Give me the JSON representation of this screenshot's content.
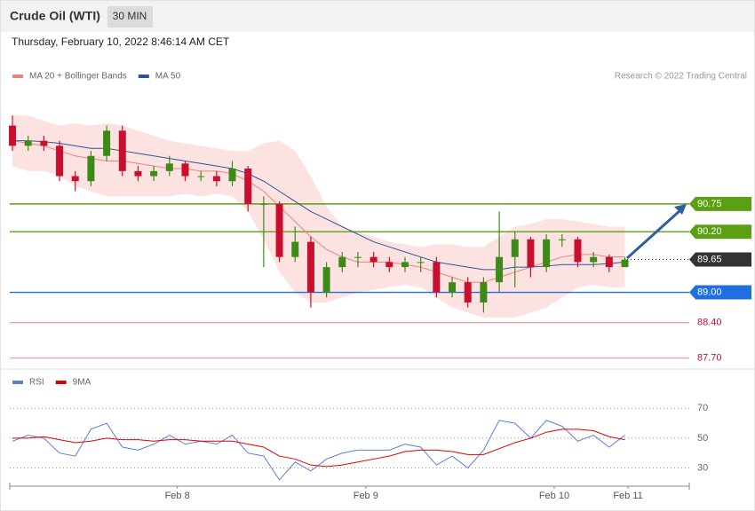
{
  "header": {
    "title": "Crude Oil (WTI)",
    "interval": "30 MIN",
    "datetime": "Thursday, February 10, 2022 8:46:14 AM CET",
    "credit": "Research © 2022 Trading Central"
  },
  "chart_data": [
    {
      "type": "candlestick",
      "x": [
        0,
        1,
        2,
        3,
        4,
        5,
        6,
        7,
        8,
        9,
        10,
        11,
        12,
        13,
        14,
        15,
        16,
        17,
        18,
        19,
        20,
        21,
        22,
        23,
        24,
        25,
        26,
        27,
        28,
        29,
        30,
        31,
        32,
        33,
        34,
        35,
        36,
        37,
        38,
        39
      ],
      "open": [
        92.3,
        91.9,
        92.0,
        91.9,
        91.3,
        91.2,
        91.7,
        92.2,
        91.4,
        91.3,
        91.4,
        91.55,
        91.3,
        91.3,
        91.2,
        91.45,
        90.75,
        90.75,
        89.7,
        90.0,
        89.0,
        89.5,
        89.7,
        89.7,
        89.6,
        89.5,
        89.6,
        89.6,
        89.0,
        89.2,
        88.8,
        89.2,
        89.7,
        90.05,
        89.5,
        90.05,
        90.05,
        89.6,
        89.7,
        89.5
      ],
      "high": [
        92.5,
        92.1,
        92.1,
        92.0,
        91.4,
        91.8,
        92.3,
        92.3,
        91.5,
        91.5,
        91.7,
        91.6,
        91.4,
        91.4,
        91.6,
        91.5,
        90.9,
        90.8,
        90.3,
        90.1,
        89.6,
        89.8,
        89.8,
        89.8,
        89.7,
        89.7,
        89.7,
        89.7,
        89.3,
        89.3,
        89.3,
        90.6,
        90.2,
        90.1,
        90.15,
        90.15,
        90.1,
        89.8,
        89.75,
        89.7
      ],
      "low": [
        91.8,
        91.8,
        91.8,
        91.2,
        91.0,
        91.1,
        91.6,
        91.3,
        91.2,
        91.2,
        91.3,
        91.2,
        91.2,
        91.1,
        91.1,
        90.6,
        89.5,
        89.6,
        89.6,
        88.7,
        88.9,
        89.4,
        89.5,
        89.5,
        89.4,
        89.4,
        89.4,
        88.9,
        88.9,
        88.7,
        88.6,
        89.0,
        89.1,
        89.3,
        89.4,
        89.9,
        89.5,
        89.5,
        89.4,
        89.5
      ],
      "close": [
        91.9,
        92.0,
        91.9,
        91.3,
        91.2,
        91.7,
        92.2,
        91.4,
        91.3,
        91.4,
        91.55,
        91.3,
        91.3,
        91.2,
        91.45,
        90.75,
        90.75,
        89.7,
        90.0,
        89.0,
        89.5,
        89.7,
        89.7,
        89.6,
        89.5,
        89.6,
        89.6,
        89.0,
        89.2,
        88.8,
        89.2,
        89.7,
        90.05,
        89.5,
        90.05,
        90.05,
        89.6,
        89.7,
        89.5,
        89.65
      ],
      "up_color": "#3d8b17",
      "down_color": "#c8102e",
      "series": [
        {
          "name": "MA 20 + Bollinger Bands",
          "color": "#f08080",
          "values": [
            92.0,
            91.95,
            91.9,
            91.8,
            91.7,
            91.65,
            91.6,
            91.6,
            91.55,
            91.5,
            91.45,
            91.45,
            91.4,
            91.4,
            91.35,
            91.2,
            91.0,
            90.7,
            90.4,
            90.1,
            89.85,
            89.7,
            89.6,
            89.6,
            89.6,
            89.55,
            89.5,
            89.4,
            89.3,
            89.2,
            89.2,
            89.3,
            89.4,
            89.5,
            89.6,
            89.7,
            89.75,
            89.75,
            89.7,
            89.7
          ],
          "upper": [
            92.5,
            92.5,
            92.4,
            92.3,
            92.35,
            92.3,
            92.35,
            92.3,
            92.2,
            92.1,
            92.0,
            91.95,
            91.9,
            91.85,
            91.8,
            91.8,
            91.95,
            92.0,
            91.8,
            91.3,
            90.7,
            90.3,
            90.2,
            90.1,
            90.0,
            89.95,
            89.9,
            89.95,
            89.95,
            89.9,
            89.9,
            90.1,
            90.3,
            90.35,
            90.45,
            90.45,
            90.4,
            90.35,
            90.3,
            90.3
          ],
          "lower": [
            91.5,
            91.4,
            91.4,
            91.3,
            91.1,
            91.0,
            90.9,
            90.9,
            90.9,
            90.9,
            90.9,
            90.95,
            90.9,
            90.95,
            90.9,
            90.6,
            90.05,
            89.4,
            89.0,
            88.8,
            88.8,
            88.9,
            89.0,
            89.05,
            89.1,
            89.15,
            89.1,
            88.9,
            88.7,
            88.6,
            88.5,
            88.5,
            88.5,
            88.6,
            88.7,
            88.9,
            89.1,
            89.15,
            89.1,
            89.1
          ],
          "band_color": "#fde2e2"
        },
        {
          "name": "MA 50",
          "color": "#2f5597",
          "values": [
            92.0,
            92.0,
            91.98,
            91.95,
            91.9,
            91.85,
            91.85,
            91.8,
            91.75,
            91.7,
            91.65,
            91.6,
            91.55,
            91.5,
            91.45,
            91.35,
            91.2,
            91.0,
            90.8,
            90.6,
            90.45,
            90.3,
            90.15,
            90.0,
            89.9,
            89.8,
            89.7,
            89.6,
            89.55,
            89.5,
            89.45,
            89.45,
            89.5,
            89.5,
            89.52,
            89.55,
            89.55,
            89.55,
            89.57,
            89.6
          ]
        }
      ],
      "levels": [
        {
          "value": 90.75,
          "label": "90.75",
          "color": "#5aa012"
        },
        {
          "value": 90.2,
          "label": "90.20",
          "color": "#5aa012"
        },
        {
          "value": 89.65,
          "label": "89.65",
          "color": "#333333"
        },
        {
          "value": 89.0,
          "label": "89.00",
          "color": "#1f6fe0"
        },
        {
          "value": 88.4,
          "label": "88.40",
          "color": "#f4a0a0"
        },
        {
          "value": 87.7,
          "label": "87.70",
          "color": "#f4a0a0"
        }
      ],
      "xlim": [
        -0.17,
        43.1
      ],
      "ylim": [
        87.5,
        93.03
      ]
    },
    {
      "type": "line",
      "x": [
        0,
        1,
        2,
        3,
        4,
        5,
        6,
        7,
        8,
        9,
        10,
        11,
        12,
        13,
        14,
        15,
        16,
        17,
        18,
        19,
        20,
        21,
        22,
        23,
        24,
        25,
        26,
        27,
        28,
        29,
        30,
        31,
        32,
        33,
        34,
        35,
        36,
        37,
        38,
        39
      ],
      "series": [
        {
          "name": "RSI",
          "color": "#5b7fd6",
          "values": [
            48,
            52,
            50,
            40,
            38,
            56,
            60,
            44,
            42,
            46,
            52,
            46,
            48,
            46,
            52,
            40,
            38,
            22,
            34,
            28,
            36,
            40,
            42,
            42,
            42,
            46,
            44,
            32,
            38,
            30,
            42,
            62,
            60,
            50,
            62,
            58,
            48,
            52,
            44,
            52
          ]
        },
        {
          "name": "9MA",
          "color": "#e00000",
          "values": [
            50,
            50,
            51,
            49,
            47,
            48,
            50,
            49,
            49,
            48,
            49,
            49,
            48,
            48,
            48,
            46,
            44,
            38,
            36,
            32,
            31,
            32,
            34,
            36,
            38,
            41,
            42,
            42,
            41,
            39,
            39,
            43,
            47,
            50,
            54,
            56,
            56,
            55,
            51,
            49
          ]
        }
      ],
      "xlim": [
        -0.17,
        43.1
      ],
      "ylim": [
        19,
        94
      ],
      "yticks": [
        30,
        50,
        70
      ],
      "xticks": [
        {
          "value": 10.5,
          "label": "Feb 8"
        },
        {
          "value": 22.5,
          "label": "Feb 9"
        },
        {
          "value": 34.5,
          "label": "Feb 10"
        },
        {
          "value": 39.2,
          "label": "Feb 11"
        }
      ]
    }
  ]
}
